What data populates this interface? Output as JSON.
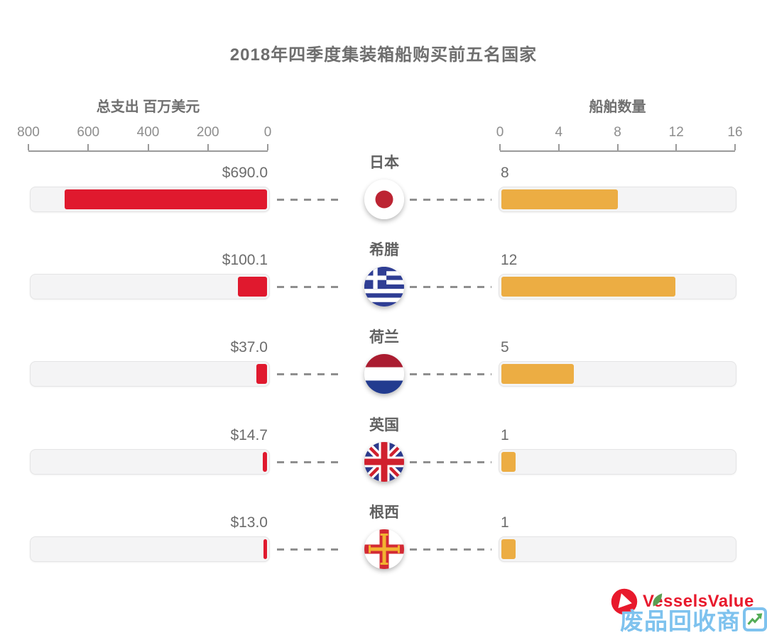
{
  "title": "2018年四季度集装箱船购买前五名国家",
  "chart_data": {
    "type": "bar",
    "layout": "bidirectional-tornado",
    "left_axis": {
      "label": "总支出 百万美元",
      "ticks": [
        "800",
        "600",
        "400",
        "200",
        "0"
      ],
      "max": 800,
      "direction": "right-to-left"
    },
    "right_axis": {
      "label": "船舶数量",
      "ticks": [
        "0",
        "4",
        "8",
        "12",
        "16"
      ],
      "max": 16,
      "direction": "left-to-right"
    },
    "rows": [
      {
        "country": "日本",
        "flag": "japan",
        "spend": 690.0,
        "spend_label": "$690.0",
        "ships": 8,
        "ships_label": "8"
      },
      {
        "country": "希腊",
        "flag": "greece",
        "spend": 100.1,
        "spend_label": "$100.1",
        "ships": 12,
        "ships_label": "12"
      },
      {
        "country": "荷兰",
        "flag": "netherlands",
        "spend": 37.0,
        "spend_label": "$37.0",
        "ships": 5,
        "ships_label": "5"
      },
      {
        "country": "英国",
        "flag": "uk",
        "spend": 14.7,
        "spend_label": "$14.7",
        "ships": 1,
        "ships_label": "1"
      },
      {
        "country": "根西",
        "flag": "guernsey",
        "spend": 13.0,
        "spend_label": "$13.0",
        "ships": 1,
        "ships_label": "1"
      }
    ],
    "colors": {
      "spend_bar": "#e0192e",
      "ships_bar": "#ecad43",
      "track_bg": "#f4f4f5"
    }
  },
  "branding": {
    "logo_text": "VesselsValue",
    "logo_color": "#e8192c"
  },
  "watermark": {
    "text": "废品回收商",
    "stylized_last_char": "网",
    "color": "#7ec2ee",
    "arrow_color": "#53ac56"
  }
}
